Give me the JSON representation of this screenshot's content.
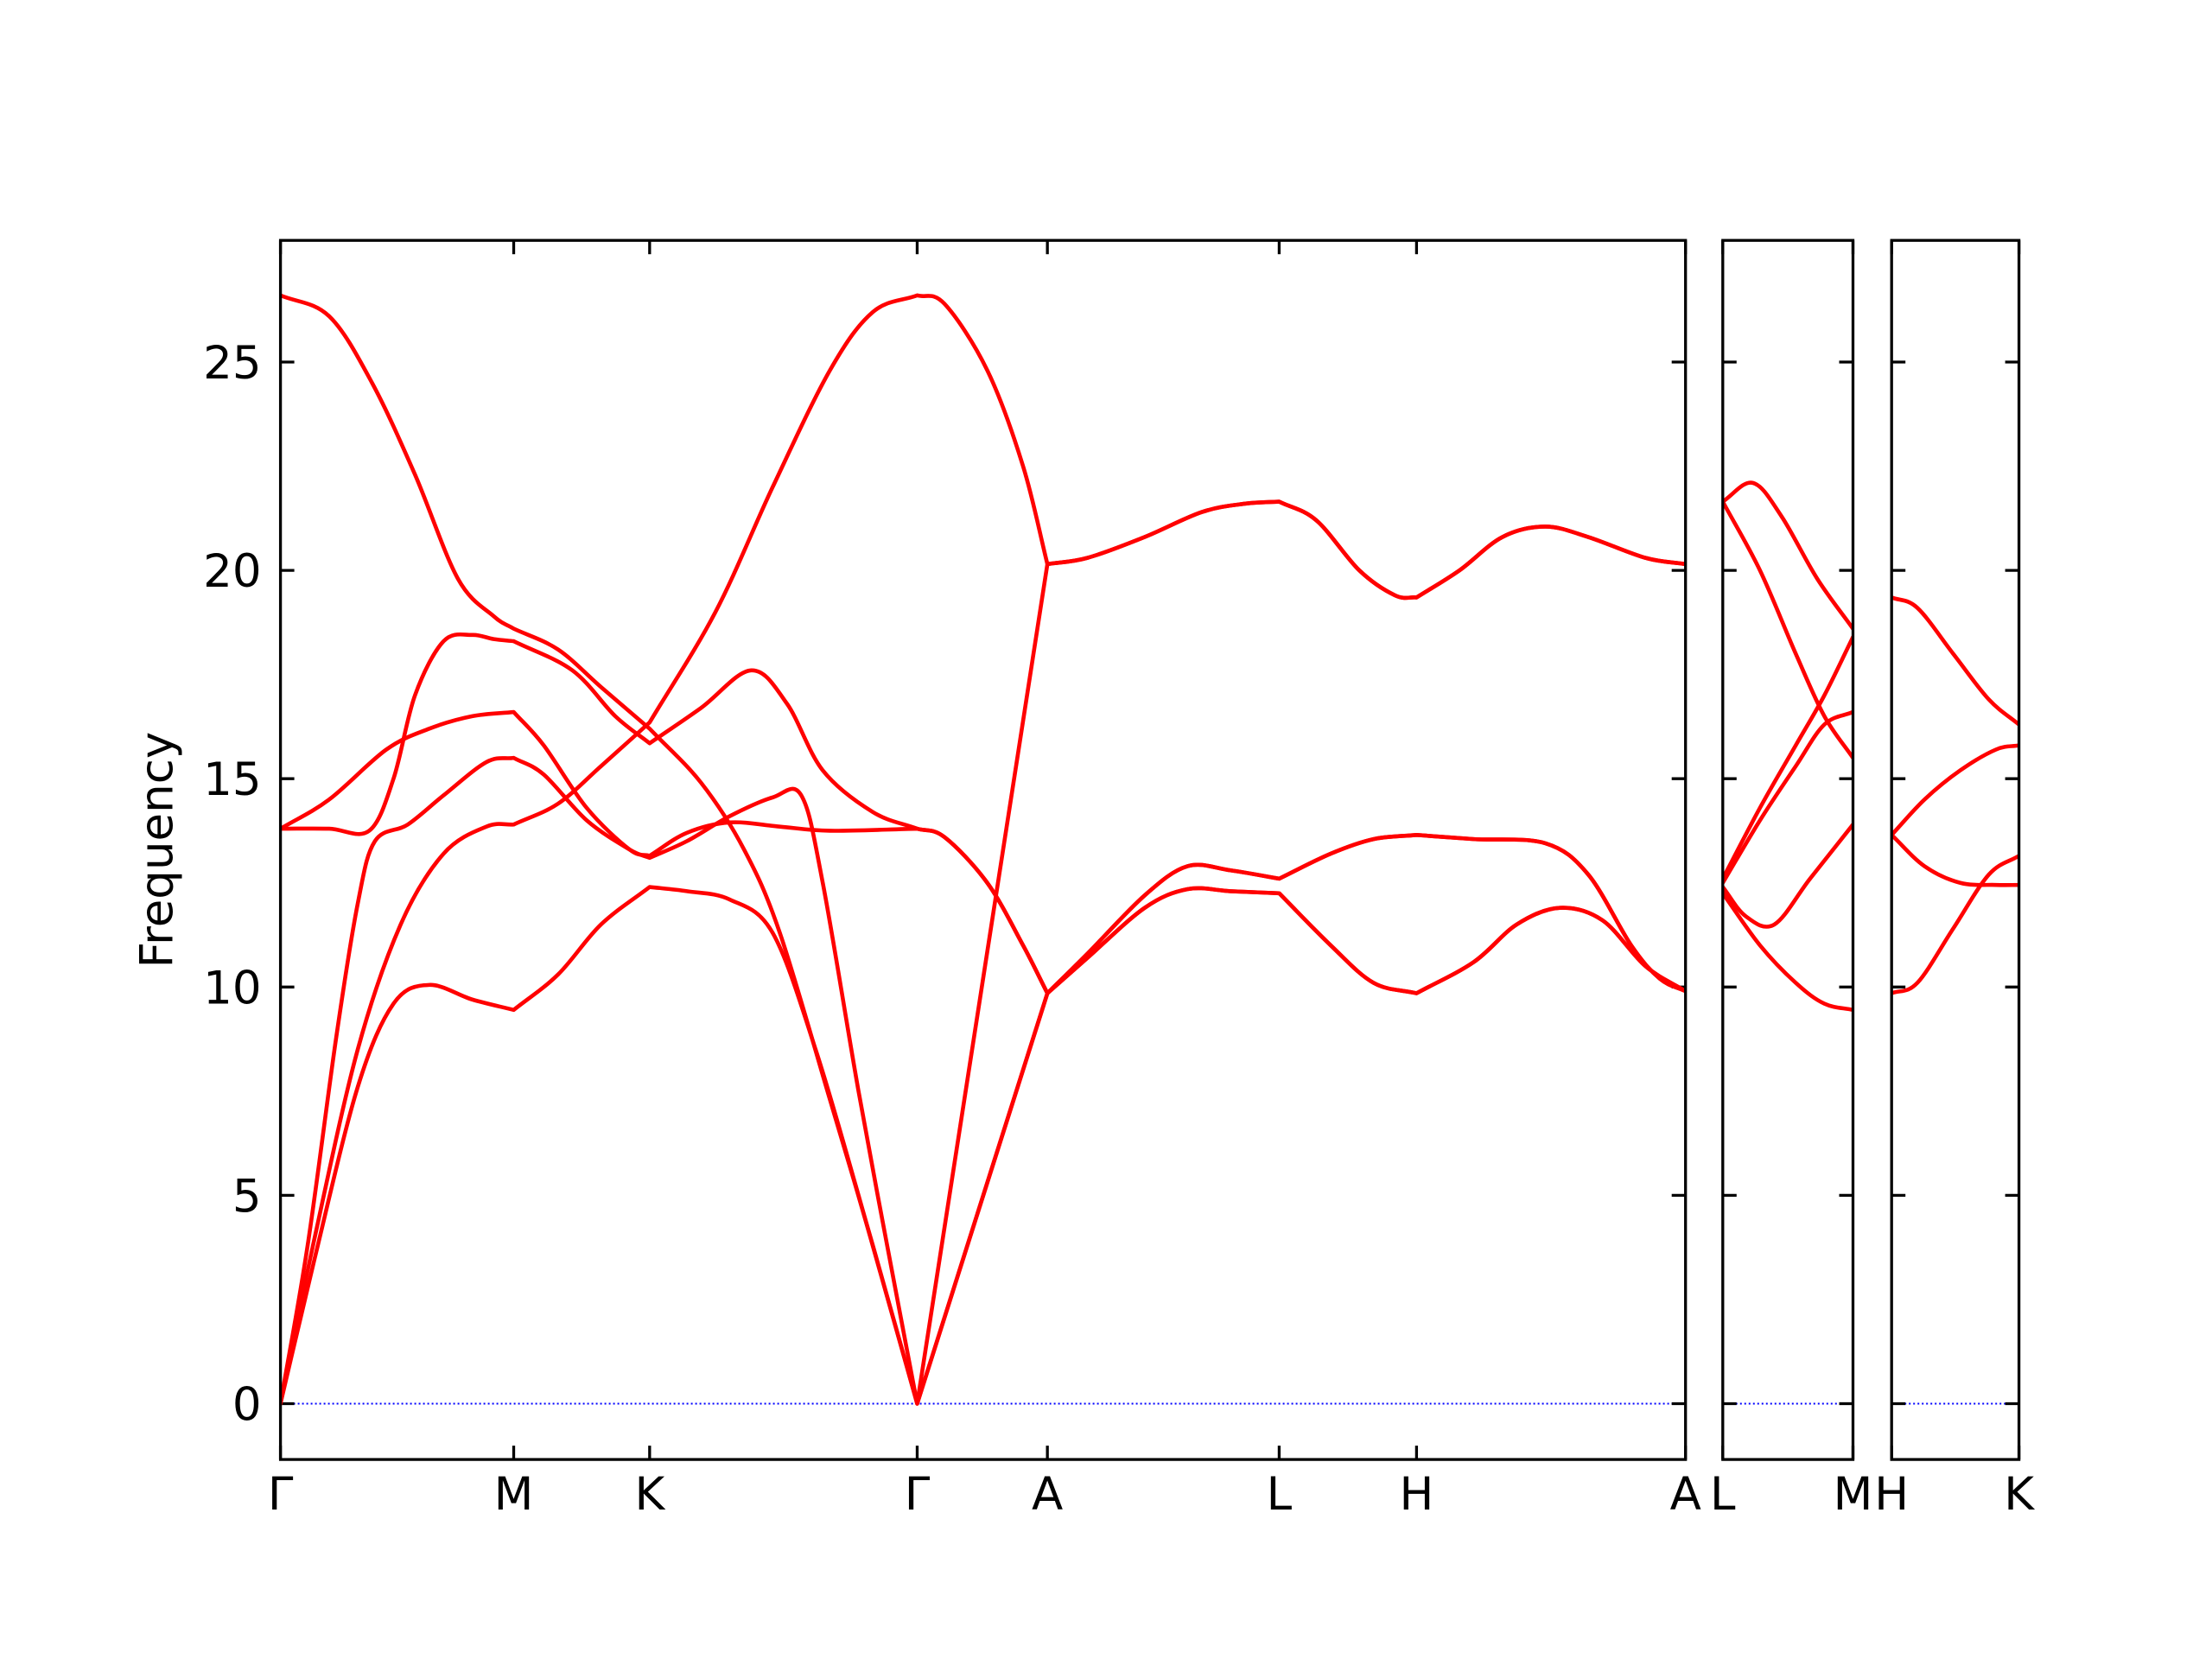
{
  "chart_data": [
    {
      "type": "line",
      "ylabel": "Frequency",
      "ytick_labels": true,
      "xlim": [
        0,
        9.82
      ],
      "ylim": [
        -1.34,
        27.92
      ],
      "yticks": [
        0,
        5,
        10,
        15,
        20,
        25
      ],
      "xticks": [
        {
          "value": 0,
          "label": "Γ"
        },
        {
          "value": 1.63,
          "label": "M"
        },
        {
          "value": 2.58,
          "label": "K"
        },
        {
          "value": 4.45,
          "label": "Γ"
        },
        {
          "value": 5.36,
          "label": "A"
        },
        {
          "value": 6.98,
          "label": "L"
        },
        {
          "value": 7.94,
          "label": "H"
        },
        {
          "value": 9.82,
          "label": "A"
        }
      ],
      "hline": {
        "value": 0,
        "color": "#0000ff"
      },
      "series": [
        {
          "color": "#ff0000",
          "x": [
            0,
            0.34,
            0.64,
            0.94,
            1.24,
            1.49,
            1.63,
            1.94,
            2.24,
            2.58,
            2.94,
            3.24,
            3.49,
            3.84,
            4.14,
            4.45,
            5.36,
            5.64,
            6.04,
            6.44,
            6.74,
            6.98,
            7.24,
            7.54,
            7.79,
            7.94,
            8.24,
            8.54,
            8.84,
            9.14,
            9.54,
            9.82
          ],
          "values": [
            26.6,
            26.1,
            24.5,
            22.3,
            19.8,
            18.9,
            18.6,
            18.1,
            17.2,
            16.2,
            14.9,
            13.3,
            11.3,
            7.3,
            3.8,
            0,
            20.15,
            20.3,
            20.8,
            21.4,
            21.6,
            21.65,
            21.2,
            20.0,
            19.4,
            19.35,
            20.0,
            20.8,
            21.05,
            20.8,
            20.3,
            20.15
          ]
        },
        {
          "color": "#ff0000",
          "x": [
            0,
            0.34,
            0.62,
            0.79,
            0.94,
            1.14,
            1.34,
            1.49,
            1.63,
            2.04,
            2.34,
            2.58,
            2.94,
            3.29,
            3.54,
            3.79,
            4.14,
            4.45,
            4.64,
            4.94,
            5.19,
            5.36,
            5.64,
            6.04,
            6.34,
            6.64,
            6.98,
            7.34,
            7.64,
            7.94,
            8.34,
            8.84,
            9.14,
            9.44,
            9.64,
            9.82
          ],
          "values": [
            13.8,
            13.8,
            13.75,
            15.0,
            17.0,
            18.3,
            18.45,
            18.35,
            18.3,
            17.6,
            16.5,
            15.85,
            16.7,
            17.6,
            16.8,
            15.2,
            14.2,
            13.8,
            13.6,
            12.5,
            11.0,
            9.85,
            10.8,
            12.2,
            12.9,
            12.8,
            12.6,
            13.2,
            13.55,
            13.65,
            13.55,
            13.45,
            12.7,
            11.0,
            10.2,
            9.9
          ]
        },
        {
          "color": "#ff0000",
          "x": [
            0,
            0.34,
            0.74,
            1.04,
            1.34,
            1.63,
            1.84,
            2.14,
            2.44,
            2.58,
            2.84,
            3.14,
            3.49,
            3.84,
            4.45,
            4.64,
            4.94,
            5.19,
            5.36,
            5.64,
            6.04,
            6.34,
            6.64,
            6.98,
            7.34,
            7.64,
            7.94,
            8.34,
            8.64,
            8.94,
            9.24,
            9.54,
            9.82
          ],
          "values": [
            13.8,
            14.5,
            15.7,
            16.2,
            16.5,
            16.6,
            15.8,
            14.3,
            13.3,
            13.15,
            13.7,
            13.95,
            13.85,
            13.75,
            13.8,
            13.6,
            12.5,
            11.0,
            9.85,
            10.7,
            11.9,
            12.35,
            12.3,
            12.25,
            11.0,
            10.1,
            9.85,
            10.6,
            11.5,
            11.9,
            11.6,
            10.5,
            9.9
          ]
        },
        {
          "color": "#ff0000",
          "x": [
            0,
            0.19,
            0.39,
            0.54,
            0.66,
            0.89,
            1.14,
            1.44,
            1.63,
            1.84,
            2.14,
            2.44,
            2.58,
            2.84,
            3.14,
            3.44,
            3.64,
            3.79,
            4.04,
            4.24,
            4.45,
            5.36,
            5.64,
            6.04,
            6.34,
            6.64,
            6.98,
            7.34,
            7.64,
            7.94,
            8.34,
            8.84,
            9.14,
            9.44,
            9.64,
            9.82
          ],
          "values": [
            0,
            3.8,
            8.8,
            12.0,
            13.5,
            13.9,
            14.6,
            15.4,
            15.5,
            15.1,
            14.0,
            13.3,
            13.1,
            13.5,
            14.1,
            14.55,
            14.6,
            12.5,
            7.5,
            3.8,
            0,
            9.85,
            10.8,
            12.2,
            12.9,
            12.8,
            12.6,
            13.2,
            13.55,
            13.65,
            13.55,
            13.45,
            12.7,
            11.0,
            10.2,
            9.9
          ]
        },
        {
          "color": "#ff0000",
          "x": [
            0,
            0.24,
            0.54,
            0.84,
            1.14,
            1.44,
            1.63,
            1.94,
            2.24,
            2.58,
            3.04,
            3.44,
            3.84,
            4.14,
            4.45,
            4.64,
            4.94,
            5.19,
            5.36,
            5.64,
            6.04,
            6.44,
            6.74,
            6.98,
            7.24,
            7.54,
            7.79,
            7.94,
            8.24,
            8.54,
            8.84,
            9.14,
            9.54,
            9.82
          ],
          "values": [
            0,
            4.0,
            8.5,
            11.5,
            13.2,
            13.85,
            13.9,
            14.4,
            15.3,
            16.35,
            19.0,
            22.0,
            24.8,
            26.2,
            26.6,
            26.4,
            24.8,
            22.5,
            20.15,
            20.3,
            20.8,
            21.4,
            21.6,
            21.65,
            21.2,
            20.0,
            19.4,
            19.35,
            20.0,
            20.8,
            21.05,
            20.8,
            20.3,
            20.15
          ]
        },
        {
          "color": "#ff0000",
          "x": [
            0,
            0.24,
            0.54,
            0.79,
            1.04,
            1.34,
            1.63,
            1.94,
            2.24,
            2.58,
            2.84,
            3.14,
            3.44,
            3.74,
            4.04,
            4.45,
            5.36,
            5.64,
            6.04,
            6.34,
            6.64,
            6.98,
            7.34,
            7.64,
            7.94,
            8.34,
            8.64,
            8.94,
            9.24,
            9.54,
            9.82
          ],
          "values": [
            0,
            3.5,
            7.6,
            9.6,
            10.05,
            9.7,
            9.45,
            10.3,
            11.5,
            12.4,
            12.3,
            12.1,
            11.3,
            8.5,
            5.0,
            0,
            9.85,
            10.7,
            11.9,
            12.35,
            12.3,
            12.25,
            11.0,
            10.1,
            9.85,
            10.6,
            11.5,
            11.9,
            11.6,
            10.5,
            9.9
          ]
        }
      ]
    },
    {
      "type": "line",
      "ytick_labels": false,
      "xlim": [
        0,
        0.91
      ],
      "ylim": [
        -1.34,
        27.92
      ],
      "yticks": [
        0,
        5,
        10,
        15,
        20,
        25
      ],
      "xticks": [
        {
          "value": 0,
          "label": "L"
        },
        {
          "value": 0.91,
          "label": "M"
        }
      ],
      "hline": {
        "value": 0,
        "color": "#0000ff"
      },
      "series": [
        {
          "color": "#ff0000",
          "x": [
            0,
            0.21,
            0.41,
            0.66,
            0.91
          ],
          "values": [
            21.65,
            22.1,
            21.3,
            19.8,
            18.6
          ]
        },
        {
          "color": "#ff0000",
          "x": [
            0,
            0.26,
            0.51,
            0.71,
            0.91
          ],
          "values": [
            21.65,
            20.0,
            18.0,
            16.5,
            15.5
          ]
        },
        {
          "color": "#ff0000",
          "x": [
            0,
            0.26,
            0.51,
            0.71,
            0.91
          ],
          "values": [
            12.6,
            14.3,
            15.8,
            17.0,
            18.4
          ]
        },
        {
          "color": "#ff0000",
          "x": [
            0,
            0.26,
            0.51,
            0.71,
            0.91
          ],
          "values": [
            12.5,
            14.0,
            15.3,
            16.3,
            16.6
          ]
        },
        {
          "color": "#ff0000",
          "x": [
            0,
            0.16,
            0.36,
            0.61,
            0.91
          ],
          "values": [
            12.4,
            11.7,
            11.5,
            12.6,
            13.9
          ]
        },
        {
          "color": "#ff0000",
          "x": [
            0,
            0.26,
            0.51,
            0.71,
            0.91
          ],
          "values": [
            12.25,
            11.0,
            10.1,
            9.6,
            9.45
          ]
        }
      ]
    },
    {
      "type": "line",
      "ytick_labels": false,
      "xlim": [
        0,
        0.89
      ],
      "ylim": [
        -1.34,
        27.92
      ],
      "yticks": [
        0,
        5,
        10,
        15,
        20,
        25
      ],
      "xticks": [
        {
          "value": 0,
          "label": "H"
        },
        {
          "value": 0.89,
          "label": "K"
        }
      ],
      "hline": {
        "value": 0,
        "color": "#0000ff"
      },
      "series": [
        {
          "color": "#ff0000",
          "x": [
            0,
            0.18,
            0.43,
            0.68,
            0.89
          ],
          "values": [
            19.35,
            19.1,
            18.0,
            16.9,
            16.3
          ]
        },
        {
          "color": "#ff0000",
          "x": [
            0,
            0.23,
            0.48,
            0.73,
            0.89
          ],
          "values": [
            13.65,
            14.5,
            15.2,
            15.7,
            15.8
          ]
        },
        {
          "color": "#ff0000",
          "x": [
            0,
            0.23,
            0.48,
            0.73,
            0.89
          ],
          "values": [
            13.65,
            12.9,
            12.5,
            12.45,
            12.45
          ]
        },
        {
          "color": "#ff0000",
          "x": [
            0,
            0.18,
            0.43,
            0.68,
            0.89
          ],
          "values": [
            9.85,
            10.1,
            11.4,
            12.7,
            13.15
          ]
        }
      ]
    }
  ]
}
